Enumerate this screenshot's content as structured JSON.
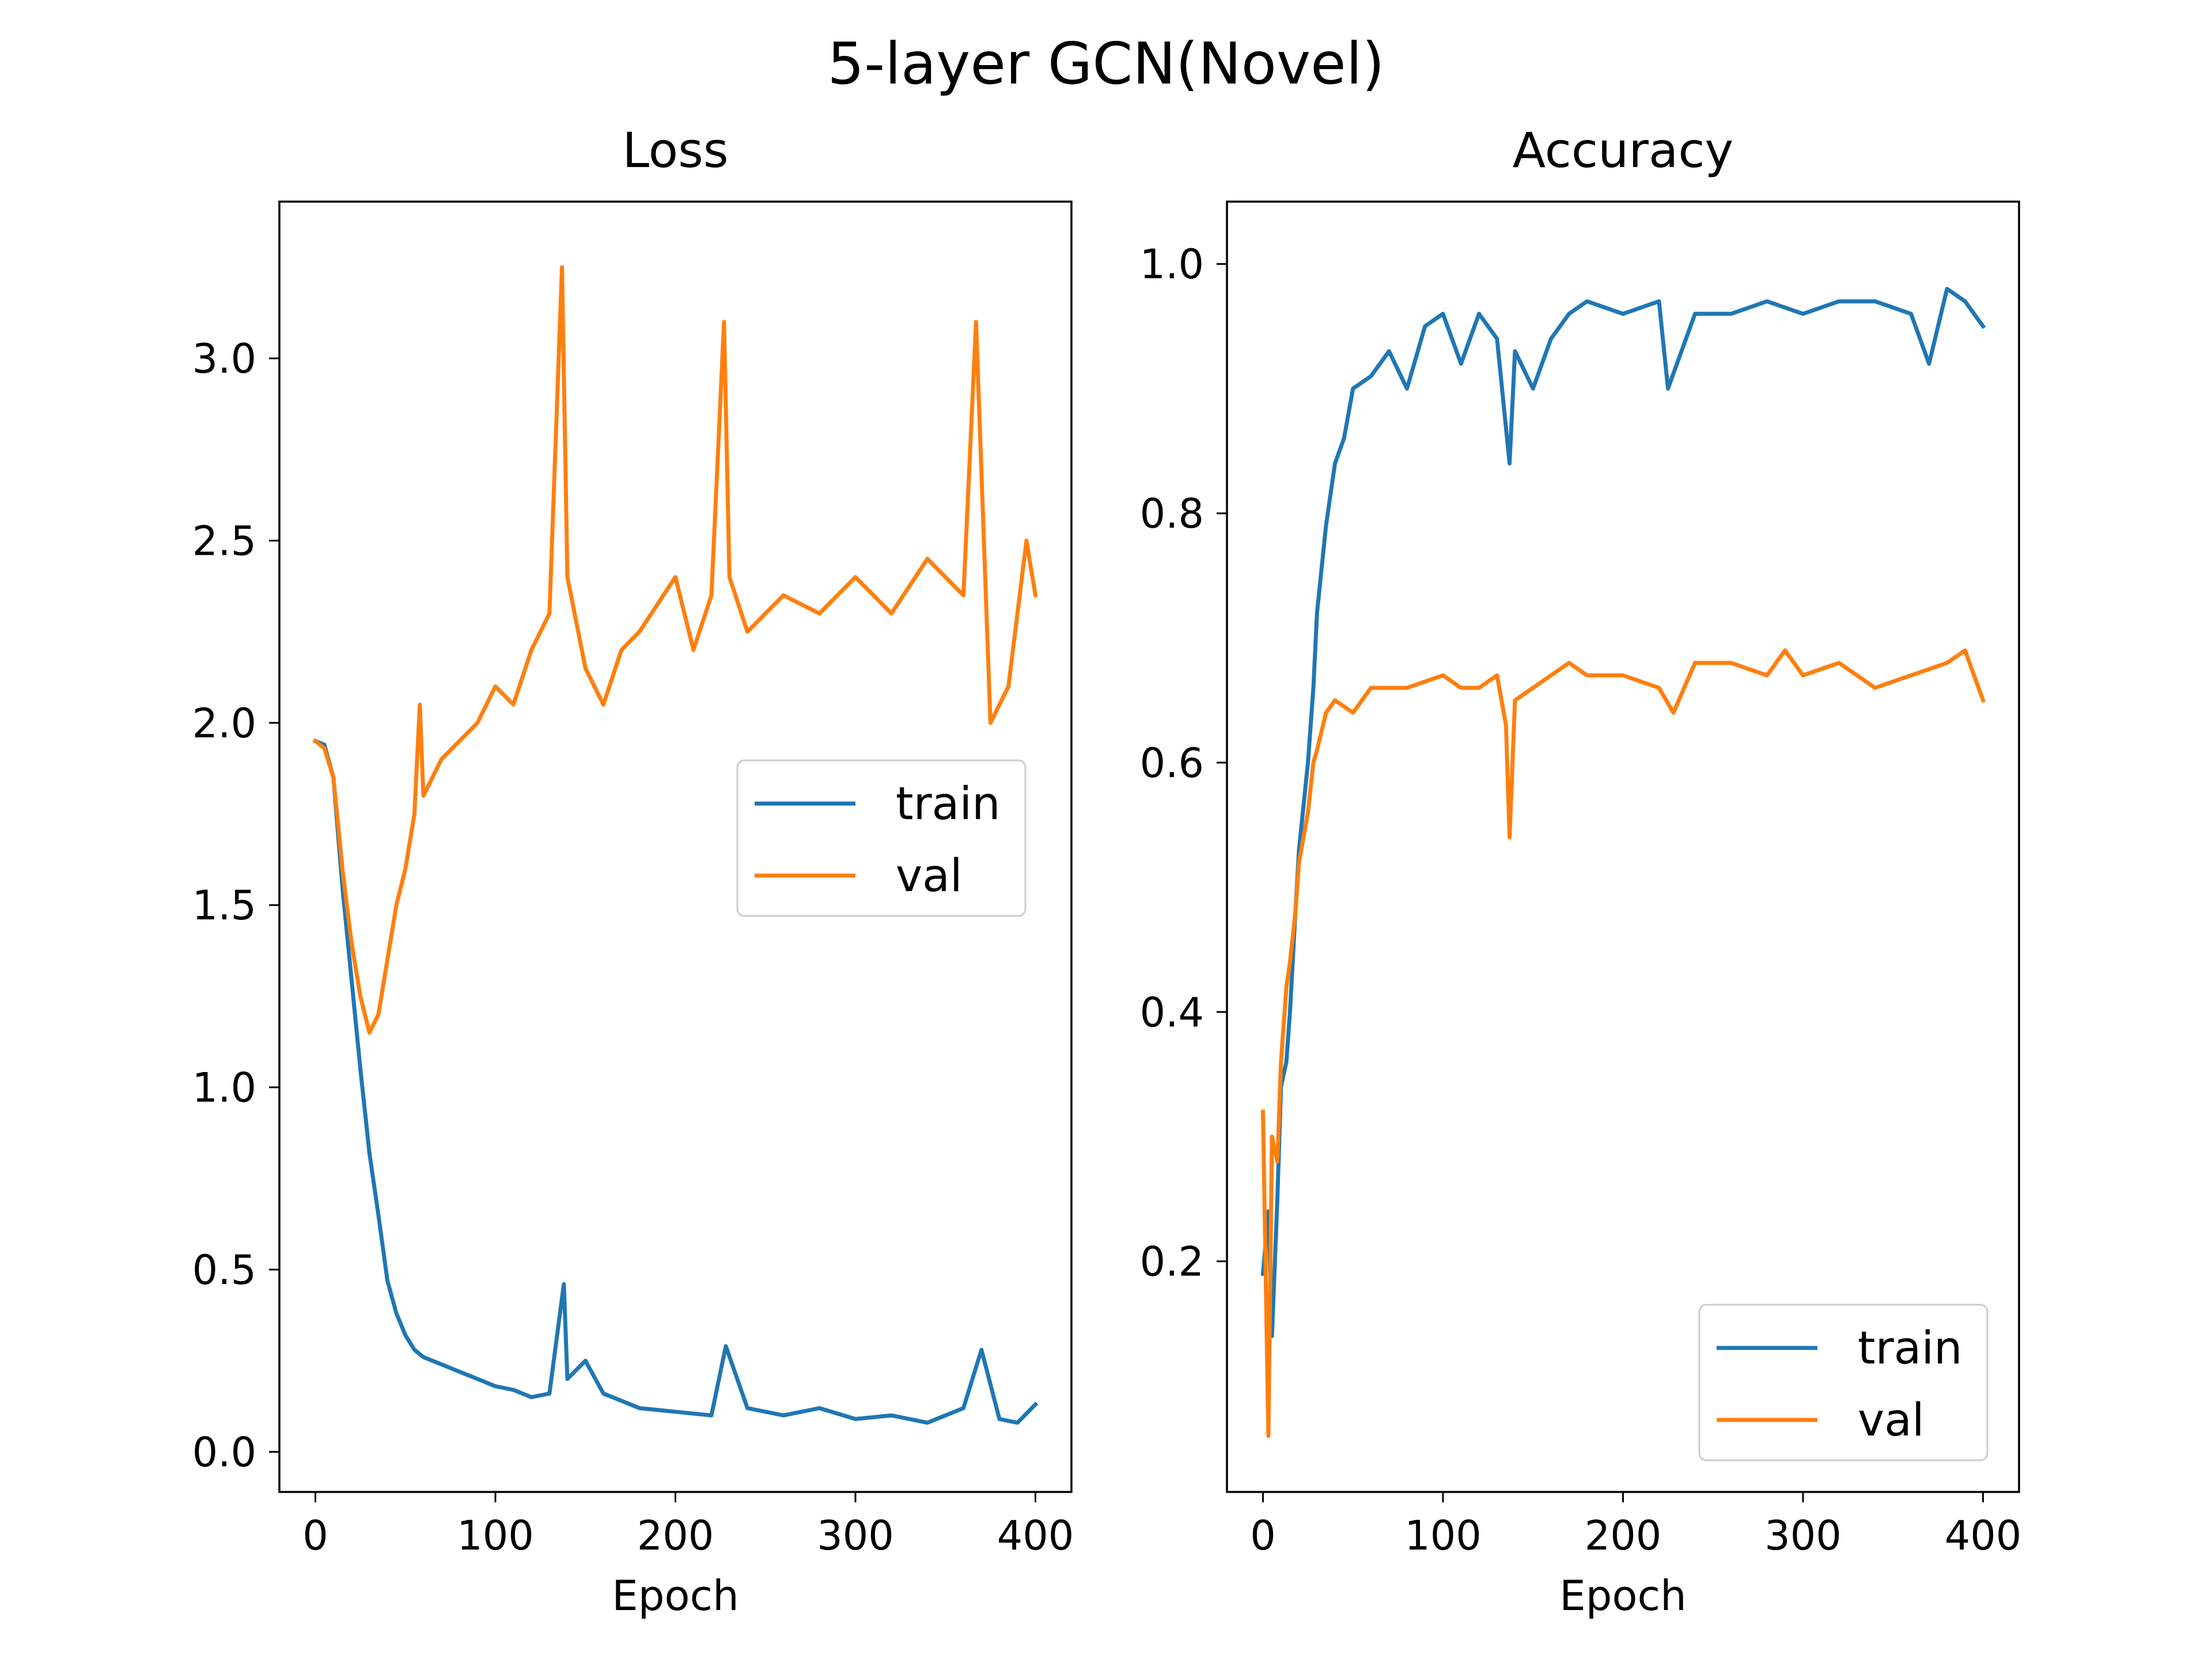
{
  "suptitle": "5-layer GCN(Novel)",
  "colors": {
    "train": "#1f77b4",
    "val": "#ff7f0e"
  },
  "chart_data": [
    {
      "type": "line",
      "title": "Loss",
      "xlabel": "Epoch",
      "ylabel": "",
      "xlim": [
        -20,
        420
      ],
      "ylim": [
        -0.11,
        3.43
      ],
      "xticks": [
        0,
        100,
        200,
        300,
        400
      ],
      "yticks": [
        0.0,
        0.5,
        1.0,
        1.5,
        2.0,
        2.5,
        3.0
      ],
      "xtick_labels": [
        "0",
        "100",
        "200",
        "300",
        "400"
      ],
      "ytick_labels": [
        "0.0",
        "0.5",
        "1.0",
        "1.5",
        "2.0",
        "2.5",
        "3.0"
      ],
      "legend": "center-right",
      "grid": false,
      "series": [
        {
          "name": "train",
          "x": [
            0,
            5,
            10,
            15,
            20,
            25,
            30,
            35,
            40,
            45,
            50,
            55,
            60,
            70,
            80,
            90,
            100,
            110,
            120,
            130,
            138,
            140,
            150,
            160,
            170,
            180,
            200,
            220,
            228,
            240,
            260,
            280,
            300,
            320,
            340,
            360,
            370,
            380,
            390,
            400
          ],
          "y": [
            1.95,
            1.94,
            1.85,
            1.55,
            1.3,
            1.05,
            0.82,
            0.65,
            0.47,
            0.38,
            0.32,
            0.28,
            0.26,
            0.24,
            0.22,
            0.2,
            0.18,
            0.17,
            0.15,
            0.16,
            0.46,
            0.2,
            0.25,
            0.16,
            0.14,
            0.12,
            0.11,
            0.1,
            0.29,
            0.12,
            0.1,
            0.12,
            0.09,
            0.1,
            0.08,
            0.12,
            0.28,
            0.09,
            0.08,
            0.13
          ]
        },
        {
          "name": "val",
          "x": [
            0,
            5,
            10,
            15,
            20,
            25,
            30,
            35,
            40,
            45,
            50,
            55,
            58,
            60,
            70,
            80,
            90,
            100,
            110,
            120,
            130,
            137,
            140,
            150,
            160,
            170,
            180,
            200,
            210,
            220,
            227,
            230,
            240,
            260,
            280,
            300,
            320,
            340,
            360,
            367,
            375,
            385,
            395,
            400
          ],
          "y": [
            1.95,
            1.93,
            1.85,
            1.6,
            1.4,
            1.25,
            1.15,
            1.2,
            1.35,
            1.5,
            1.6,
            1.75,
            2.05,
            1.8,
            1.9,
            1.95,
            2.0,
            2.1,
            2.05,
            2.2,
            2.3,
            3.25,
            2.4,
            2.15,
            2.05,
            2.2,
            2.25,
            2.4,
            2.2,
            2.35,
            3.1,
            2.4,
            2.25,
            2.35,
            2.3,
            2.4,
            2.3,
            2.45,
            2.35,
            3.1,
            2.0,
            2.1,
            2.5,
            2.35
          ]
        }
      ]
    },
    {
      "type": "line",
      "title": "Accuracy",
      "xlabel": "Epoch",
      "ylabel": "",
      "xlim": [
        -20,
        420
      ],
      "ylim": [
        0.015,
        1.05
      ],
      "xticks": [
        0,
        100,
        200,
        300,
        400
      ],
      "yticks": [
        0.2,
        0.4,
        0.6,
        0.8,
        1.0
      ],
      "xtick_labels": [
        "0",
        "100",
        "200",
        "300",
        "400"
      ],
      "ytick_labels": [
        "0.2",
        "0.4",
        "0.6",
        "0.8",
        "1.0"
      ],
      "legend": "lower-right",
      "grid": false,
      "series": [
        {
          "name": "train",
          "x": [
            0,
            3,
            5,
            8,
            10,
            13,
            15,
            18,
            20,
            25,
            28,
            30,
            35,
            40,
            45,
            50,
            60,
            70,
            80,
            90,
            100,
            110,
            120,
            130,
            137,
            140,
            150,
            160,
            170,
            180,
            200,
            220,
            225,
            240,
            260,
            280,
            300,
            320,
            340,
            360,
            370,
            380,
            390,
            400
          ],
          "y": [
            0.19,
            0.24,
            0.14,
            0.25,
            0.34,
            0.36,
            0.4,
            0.48,
            0.53,
            0.6,
            0.66,
            0.72,
            0.79,
            0.84,
            0.86,
            0.9,
            0.91,
            0.93,
            0.9,
            0.95,
            0.96,
            0.92,
            0.96,
            0.94,
            0.84,
            0.93,
            0.9,
            0.94,
            0.96,
            0.97,
            0.96,
            0.97,
            0.9,
            0.96,
            0.96,
            0.97,
            0.96,
            0.97,
            0.97,
            0.96,
            0.92,
            0.98,
            0.97,
            0.95
          ]
        },
        {
          "name": "val",
          "x": [
            0,
            3,
            5,
            8,
            10,
            13,
            15,
            18,
            20,
            25,
            28,
            30,
            35,
            40,
            50,
            60,
            80,
            100,
            110,
            120,
            130,
            135,
            137,
            140,
            150,
            160,
            170,
            180,
            200,
            220,
            228,
            240,
            260,
            280,
            290,
            300,
            320,
            340,
            360,
            380,
            390,
            400
          ],
          "y": [
            0.32,
            0.06,
            0.3,
            0.28,
            0.36,
            0.42,
            0.44,
            0.48,
            0.52,
            0.56,
            0.6,
            0.61,
            0.64,
            0.65,
            0.64,
            0.66,
            0.66,
            0.67,
            0.66,
            0.66,
            0.67,
            0.63,
            0.54,
            0.65,
            0.66,
            0.67,
            0.68,
            0.67,
            0.67,
            0.66,
            0.64,
            0.68,
            0.68,
            0.67,
            0.69,
            0.67,
            0.68,
            0.66,
            0.67,
            0.68,
            0.69,
            0.65
          ]
        }
      ]
    }
  ]
}
